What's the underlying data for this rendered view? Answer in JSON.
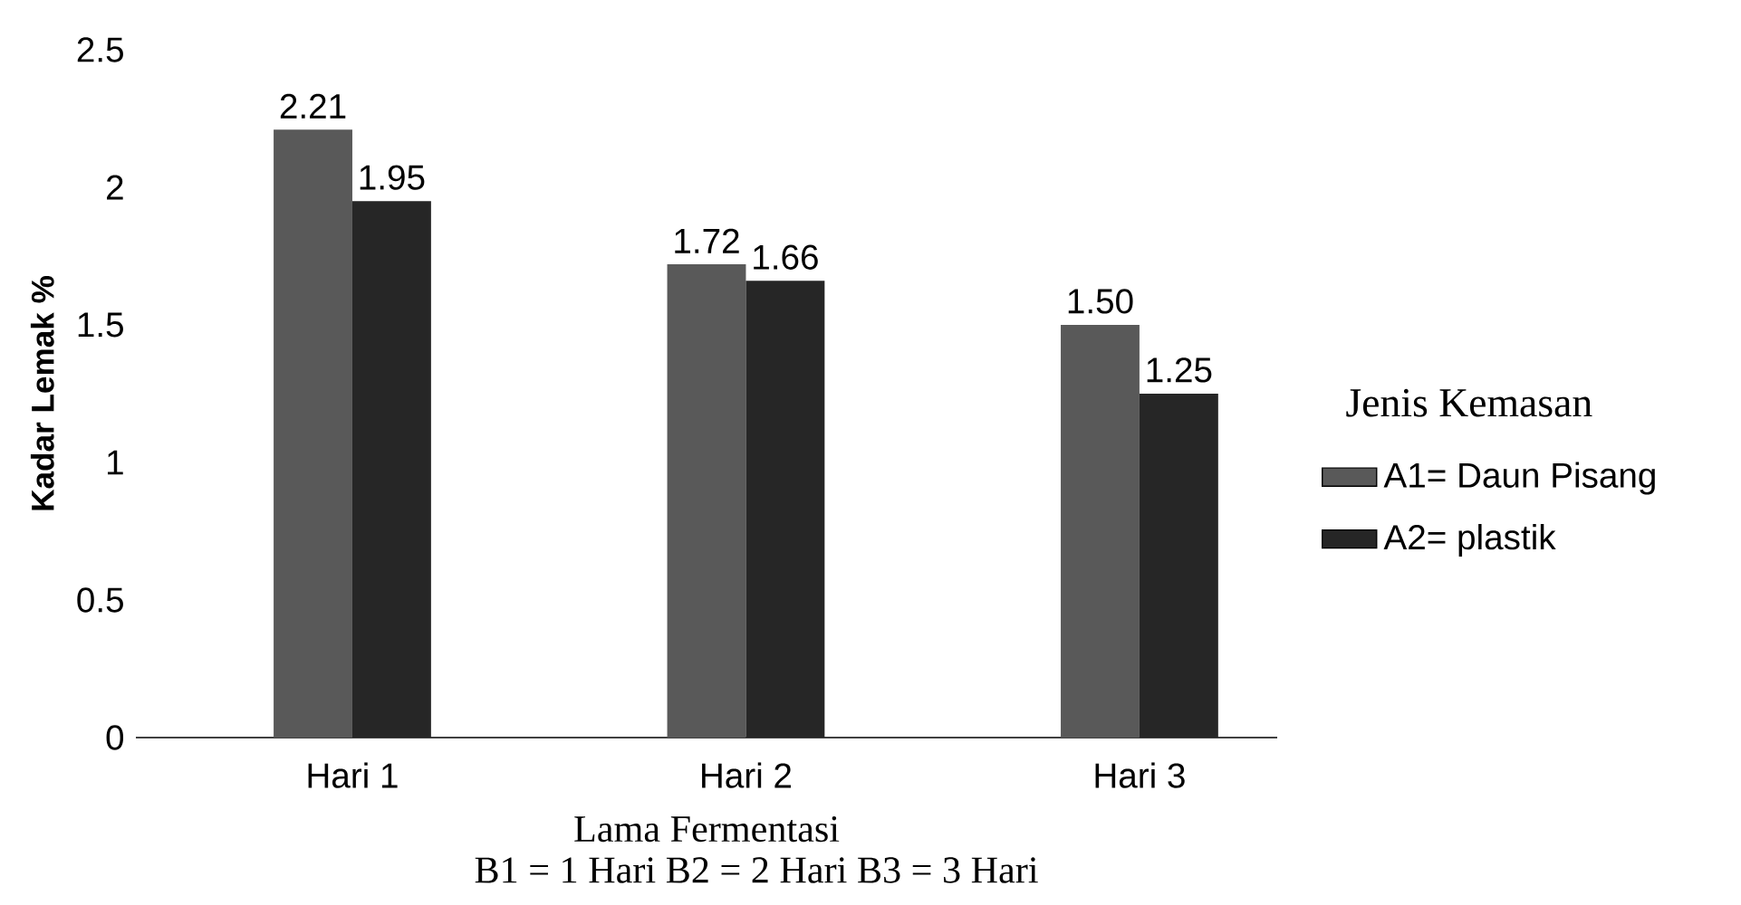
{
  "chart_data": {
    "type": "bar",
    "ylabel": "Kadar Lemak %",
    "xlabel": "Lama Fermentasi",
    "annotations": [
      "B1 = 1 Hari B2 = 2 Hari B3 = 3 Hari"
    ],
    "legend_title": "Jenis Kemasan",
    "legend": "right",
    "categories": [
      "Hari 1",
      "Hari 2",
      "Hari 3"
    ],
    "series": [
      {
        "name": "A1= Daun Pisang",
        "color": "#595959",
        "values": [
          2.21,
          1.72,
          1.5
        ],
        "value_labels": [
          "2.21",
          "1.72",
          "1.50"
        ]
      },
      {
        "name": "A2= plastik",
        "color": "#262626",
        "values": [
          1.95,
          1.66,
          1.25
        ],
        "value_labels": [
          "1.95",
          "1.66",
          "1.25"
        ]
      }
    ],
    "ylim": [
      0,
      2.5
    ],
    "yticks": [
      0,
      0.5,
      1,
      1.5,
      2,
      2.5
    ],
    "grid": false
  }
}
